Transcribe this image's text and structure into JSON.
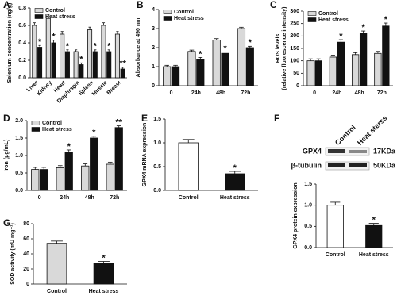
{
  "chart_data": [
    {
      "type": "bar",
      "panel": "A",
      "ylabel": "Selenium concentration (ng/g)",
      "categories": [
        "Liver",
        "Kidney",
        "Heart",
        "Diaphragm",
        "Spleen",
        "Muscle",
        "Breast"
      ],
      "series": [
        {
          "name": "Control",
          "color": "#d9d9d9",
          "values": [
            0.6,
            0.68,
            0.5,
            0.3,
            0.55,
            0.6,
            0.5
          ],
          "errors": [
            0.03,
            0.04,
            0.03,
            0.02,
            0.03,
            0.03,
            0.03
          ]
        },
        {
          "name": "Heat stress",
          "color": "#111111",
          "values": [
            0.35,
            0.4,
            0.3,
            0.15,
            0.3,
            0.3,
            0.1
          ],
          "errors": [
            0.02,
            0.03,
            0.02,
            0.02,
            0.02,
            0.02,
            0.02
          ],
          "annotations": [
            "*",
            "*",
            "*",
            "*",
            "*",
            "*",
            "**"
          ]
        }
      ],
      "ylim": [
        0,
        0.8
      ],
      "yticks": [
        {
          "value": 0,
          "label": "0.0"
        },
        0.2,
        0.4,
        0.6,
        0.8
      ],
      "legend": "upper left",
      "rotate_labels": true
    },
    {
      "type": "bar",
      "panel": "B",
      "ylabel": "Absorbance at 490 nm",
      "categories": [
        "0",
        "24h",
        "48h",
        "72h"
      ],
      "series": [
        {
          "name": "Control",
          "color": "#d9d9d9",
          "values": [
            1.0,
            1.8,
            2.4,
            3.0
          ],
          "errors": [
            0.07,
            0.07,
            0.07,
            0.07
          ]
        },
        {
          "name": "Heat stress",
          "color": "#111111",
          "values": [
            1.0,
            1.4,
            1.7,
            2.0
          ],
          "errors": [
            0.07,
            0.08,
            0.07,
            0.07
          ],
          "annotations": [
            null,
            "*",
            "*",
            "*"
          ]
        }
      ],
      "ylim": [
        0,
        4
      ],
      "yticks": [
        0,
        1,
        2,
        3,
        4
      ],
      "legend": "upper left"
    },
    {
      "type": "bar",
      "panel": "C",
      "ylabel": [
        "ROS levels",
        "(relative fluorescence intensity)"
      ],
      "categories": [
        "0",
        "24h",
        "48h",
        "72h"
      ],
      "series": [
        {
          "name": "Control",
          "color": "#d9d9d9",
          "values": [
            100,
            115,
            125,
            130
          ],
          "errors": [
            8,
            8,
            8,
            8
          ]
        },
        {
          "name": "Heat stress",
          "color": "#111111",
          "values": [
            100,
            175,
            210,
            240
          ],
          "errors": [
            8,
            10,
            10,
            12
          ],
          "annotations": [
            null,
            "*",
            "*",
            "*"
          ]
        }
      ],
      "ylim": [
        0,
        300
      ],
      "yticks": [
        0,
        50,
        100,
        150,
        200,
        250,
        300
      ],
      "legend": "upper left"
    },
    {
      "type": "bar",
      "panel": "D",
      "ylabel": "Iron (μg/mL)",
      "categories": [
        "0",
        "24h",
        "48h",
        "72h"
      ],
      "series": [
        {
          "name": "Control",
          "color": "#d9d9d9",
          "values": [
            0.6,
            0.65,
            0.7,
            0.75
          ],
          "errors": [
            0.06,
            0.06,
            0.06,
            0.06
          ]
        },
        {
          "name": "Heat stress",
          "color": "#111111",
          "values": [
            0.6,
            1.1,
            1.5,
            1.8
          ],
          "errors": [
            0.06,
            0.06,
            0.05,
            0.05
          ],
          "annotations": [
            null,
            "*",
            "*",
            "**"
          ]
        }
      ],
      "ylim": [
        0,
        2
      ],
      "yticks": [
        {
          "value": 0,
          "label": "0.0"
        },
        0.5,
        {
          "value": 1,
          "label": "1.0"
        },
        1.5,
        {
          "value": 2,
          "label": "2.0"
        }
      ],
      "legend": "upper left"
    },
    {
      "type": "bar",
      "panel": "E",
      "ylabel": "GPX4 mRNA expression",
      "categories": [
        "Control",
        "Heat stress"
      ],
      "series": [
        {
          "colors": [
            "#ffffff",
            "#111111"
          ],
          "values": [
            1.0,
            0.35
          ],
          "errors": [
            0.07,
            0.05
          ],
          "annotations": [
            null,
            "*"
          ]
        }
      ],
      "ylim": [
        0,
        1.5
      ],
      "yticks": [
        {
          "value": 0,
          "label": "0.0"
        },
        0.5,
        {
          "value": 1,
          "label": "1.0"
        },
        1.5
      ]
    },
    {
      "type": "bar",
      "panel": "F",
      "ylabel": "GPX4 protein expression",
      "blot": {
        "proteins": [
          "GPX4",
          "β-tubulin"
        ],
        "sizes": [
          "17KDa",
          "50KDa"
        ],
        "lanes": [
          "Control",
          "Heat sterss"
        ]
      },
      "categories": [
        "Control",
        "Heat stress"
      ],
      "series": [
        {
          "colors": [
            "#ffffff",
            "#111111"
          ],
          "values": [
            1.0,
            0.52
          ],
          "errors": [
            0.07,
            0.05
          ],
          "annotations": [
            null,
            "*"
          ]
        }
      ],
      "ylim": [
        0,
        1.5
      ],
      "yticks": [
        {
          "value": 0,
          "label": "0.0"
        },
        0.5,
        {
          "value": 1,
          "label": "1.0"
        },
        1.5
      ]
    },
    {
      "type": "bar",
      "panel": "G",
      "ylabel": "SOD activity (mU mg⁻¹)",
      "categories": [
        "Control",
        "Heat stress"
      ],
      "series": [
        {
          "colors": [
            "#d9d9d9",
            "#111111"
          ],
          "values": [
            54,
            28
          ],
          "errors": [
            3,
            2
          ],
          "annotations": [
            null,
            "*"
          ]
        }
      ],
      "ylim": [
        0,
        80
      ],
      "yticks": [
        0,
        20,
        40,
        60,
        80
      ]
    }
  ]
}
